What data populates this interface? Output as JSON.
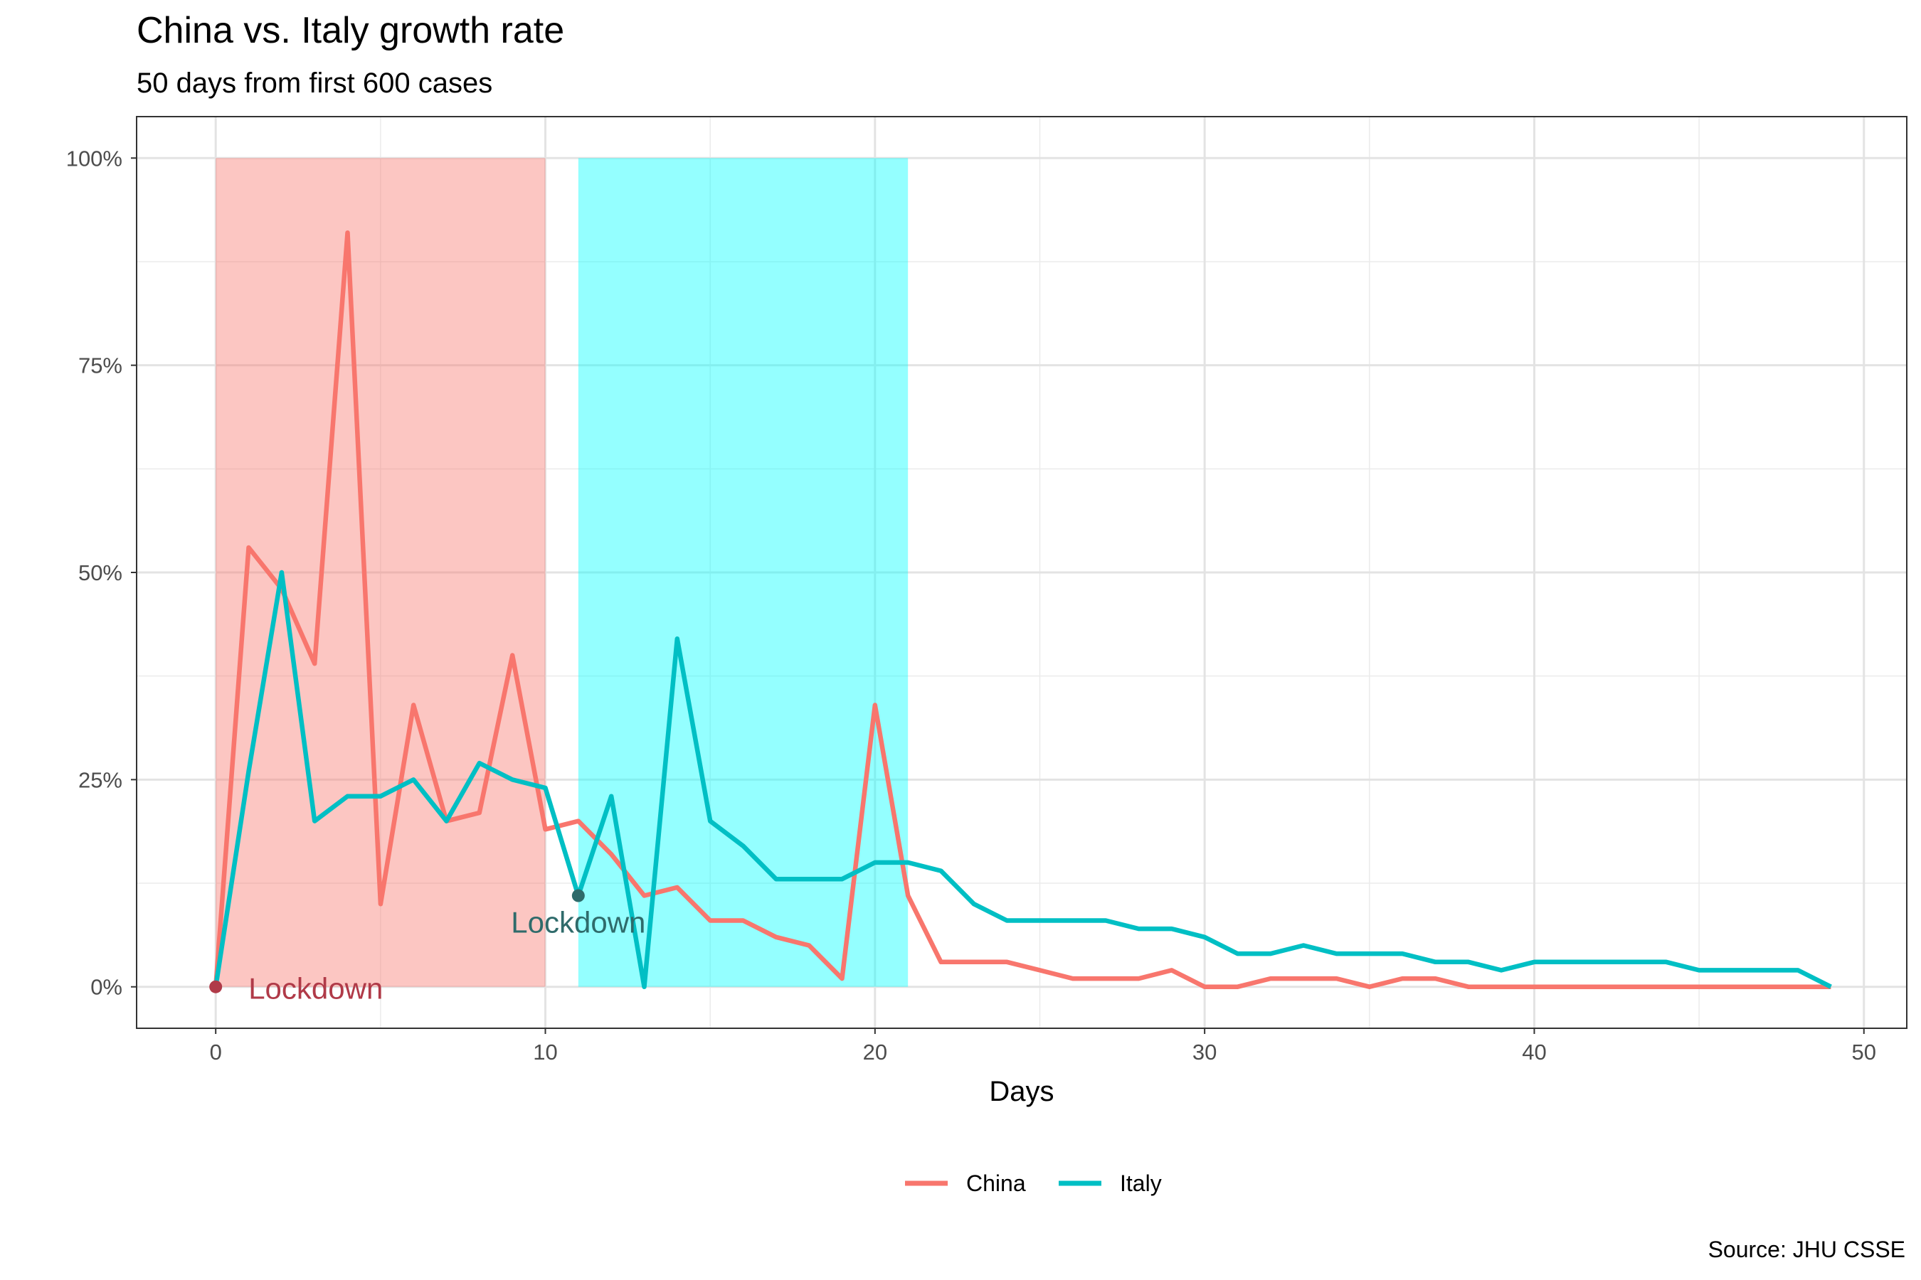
{
  "chart_data": {
    "type": "line",
    "title": "China vs. Italy growth rate",
    "subtitle": "50 days from first 600 cases",
    "xlabel": "Days",
    "ylabel": "",
    "caption": "Source: JHU CSSE",
    "xlim": [
      -2.4,
      51.3
    ],
    "ylim": [
      -0.05,
      1.05
    ],
    "x_ticks": [
      0,
      10,
      20,
      30,
      40,
      50
    ],
    "x_tick_labels": [
      "0",
      "10",
      "20",
      "30",
      "40",
      "50"
    ],
    "y_ticks": [
      0,
      0.25,
      0.5,
      0.75,
      1.0
    ],
    "y_tick_labels": [
      "0%",
      "25%",
      "50%",
      "75%",
      "100%"
    ],
    "grid": true,
    "legend_position": "bottom",
    "colors": {
      "China": "#F8766D",
      "Italy": "#00BFC4"
    },
    "shaded_regions": [
      {
        "series": "China",
        "x_start": 0,
        "x_end": 10,
        "y_start": 0,
        "y_end": 1.0,
        "color": "#F8766D"
      },
      {
        "series": "Italy",
        "x_start": 11,
        "x_end": 21,
        "y_start": 0,
        "y_end": 1.0,
        "color": "#00FFFF"
      }
    ],
    "annotations": [
      {
        "series": "China",
        "label": "Lockdown",
        "x": 0,
        "y": 0.0,
        "color": "#B03A48"
      },
      {
        "series": "Italy",
        "label": "Lockdown",
        "x": 11,
        "y": 0.11,
        "color": "#2F6B6B"
      }
    ],
    "series": [
      {
        "name": "China",
        "color": "#F8766D",
        "x": [
          0,
          1,
          2,
          3,
          4,
          5,
          6,
          7,
          8,
          9,
          10,
          11,
          12,
          13,
          14,
          15,
          16,
          17,
          18,
          19,
          20,
          21,
          22,
          23,
          24,
          25,
          26,
          27,
          28,
          29,
          30,
          31,
          32,
          33,
          34,
          35,
          36,
          37,
          38,
          39,
          40,
          41,
          42,
          43,
          44,
          45,
          46,
          47,
          48,
          49
        ],
        "values": [
          0,
          0.53,
          0.48,
          0.39,
          0.91,
          0.1,
          0.34,
          0.2,
          0.21,
          0.4,
          0.19,
          0.2,
          0.16,
          0.11,
          0.12,
          0.08,
          0.08,
          0.06,
          0.05,
          0.01,
          0.34,
          0.11,
          0.03,
          0.03,
          0.03,
          0.02,
          0.01,
          0.01,
          0.01,
          0.02,
          0,
          0,
          0.01,
          0.01,
          0.01,
          0,
          0.01,
          0.01,
          0,
          0,
          0,
          0,
          0,
          0,
          0,
          0,
          0,
          0,
          0,
          0
        ]
      },
      {
        "name": "Italy",
        "color": "#00BFC4",
        "x": [
          0,
          1,
          2,
          3,
          4,
          5,
          6,
          7,
          8,
          9,
          10,
          11,
          12,
          13,
          14,
          15,
          16,
          17,
          18,
          19,
          20,
          21,
          22,
          23,
          24,
          25,
          26,
          27,
          28,
          29,
          30,
          31,
          32,
          33,
          34,
          35,
          36,
          37,
          38,
          39,
          40,
          41,
          42,
          43,
          44,
          45,
          46,
          47,
          48,
          49
        ],
        "values": [
          0,
          0.26,
          0.5,
          0.2,
          0.23,
          0.23,
          0.25,
          0.2,
          0.27,
          0.25,
          0.24,
          0.11,
          0.23,
          0,
          0.42,
          0.2,
          0.17,
          0.13,
          0.13,
          0.13,
          0.15,
          0.15,
          0.14,
          0.1,
          0.08,
          0.08,
          0.08,
          0.08,
          0.07,
          0.07,
          0.06,
          0.04,
          0.04,
          0.05,
          0.04,
          0.04,
          0.04,
          0.03,
          0.03,
          0.02,
          0.03,
          0.03,
          0.03,
          0.03,
          0.03,
          0.02,
          0.02,
          0.02,
          0.02,
          0
        ]
      }
    ]
  }
}
